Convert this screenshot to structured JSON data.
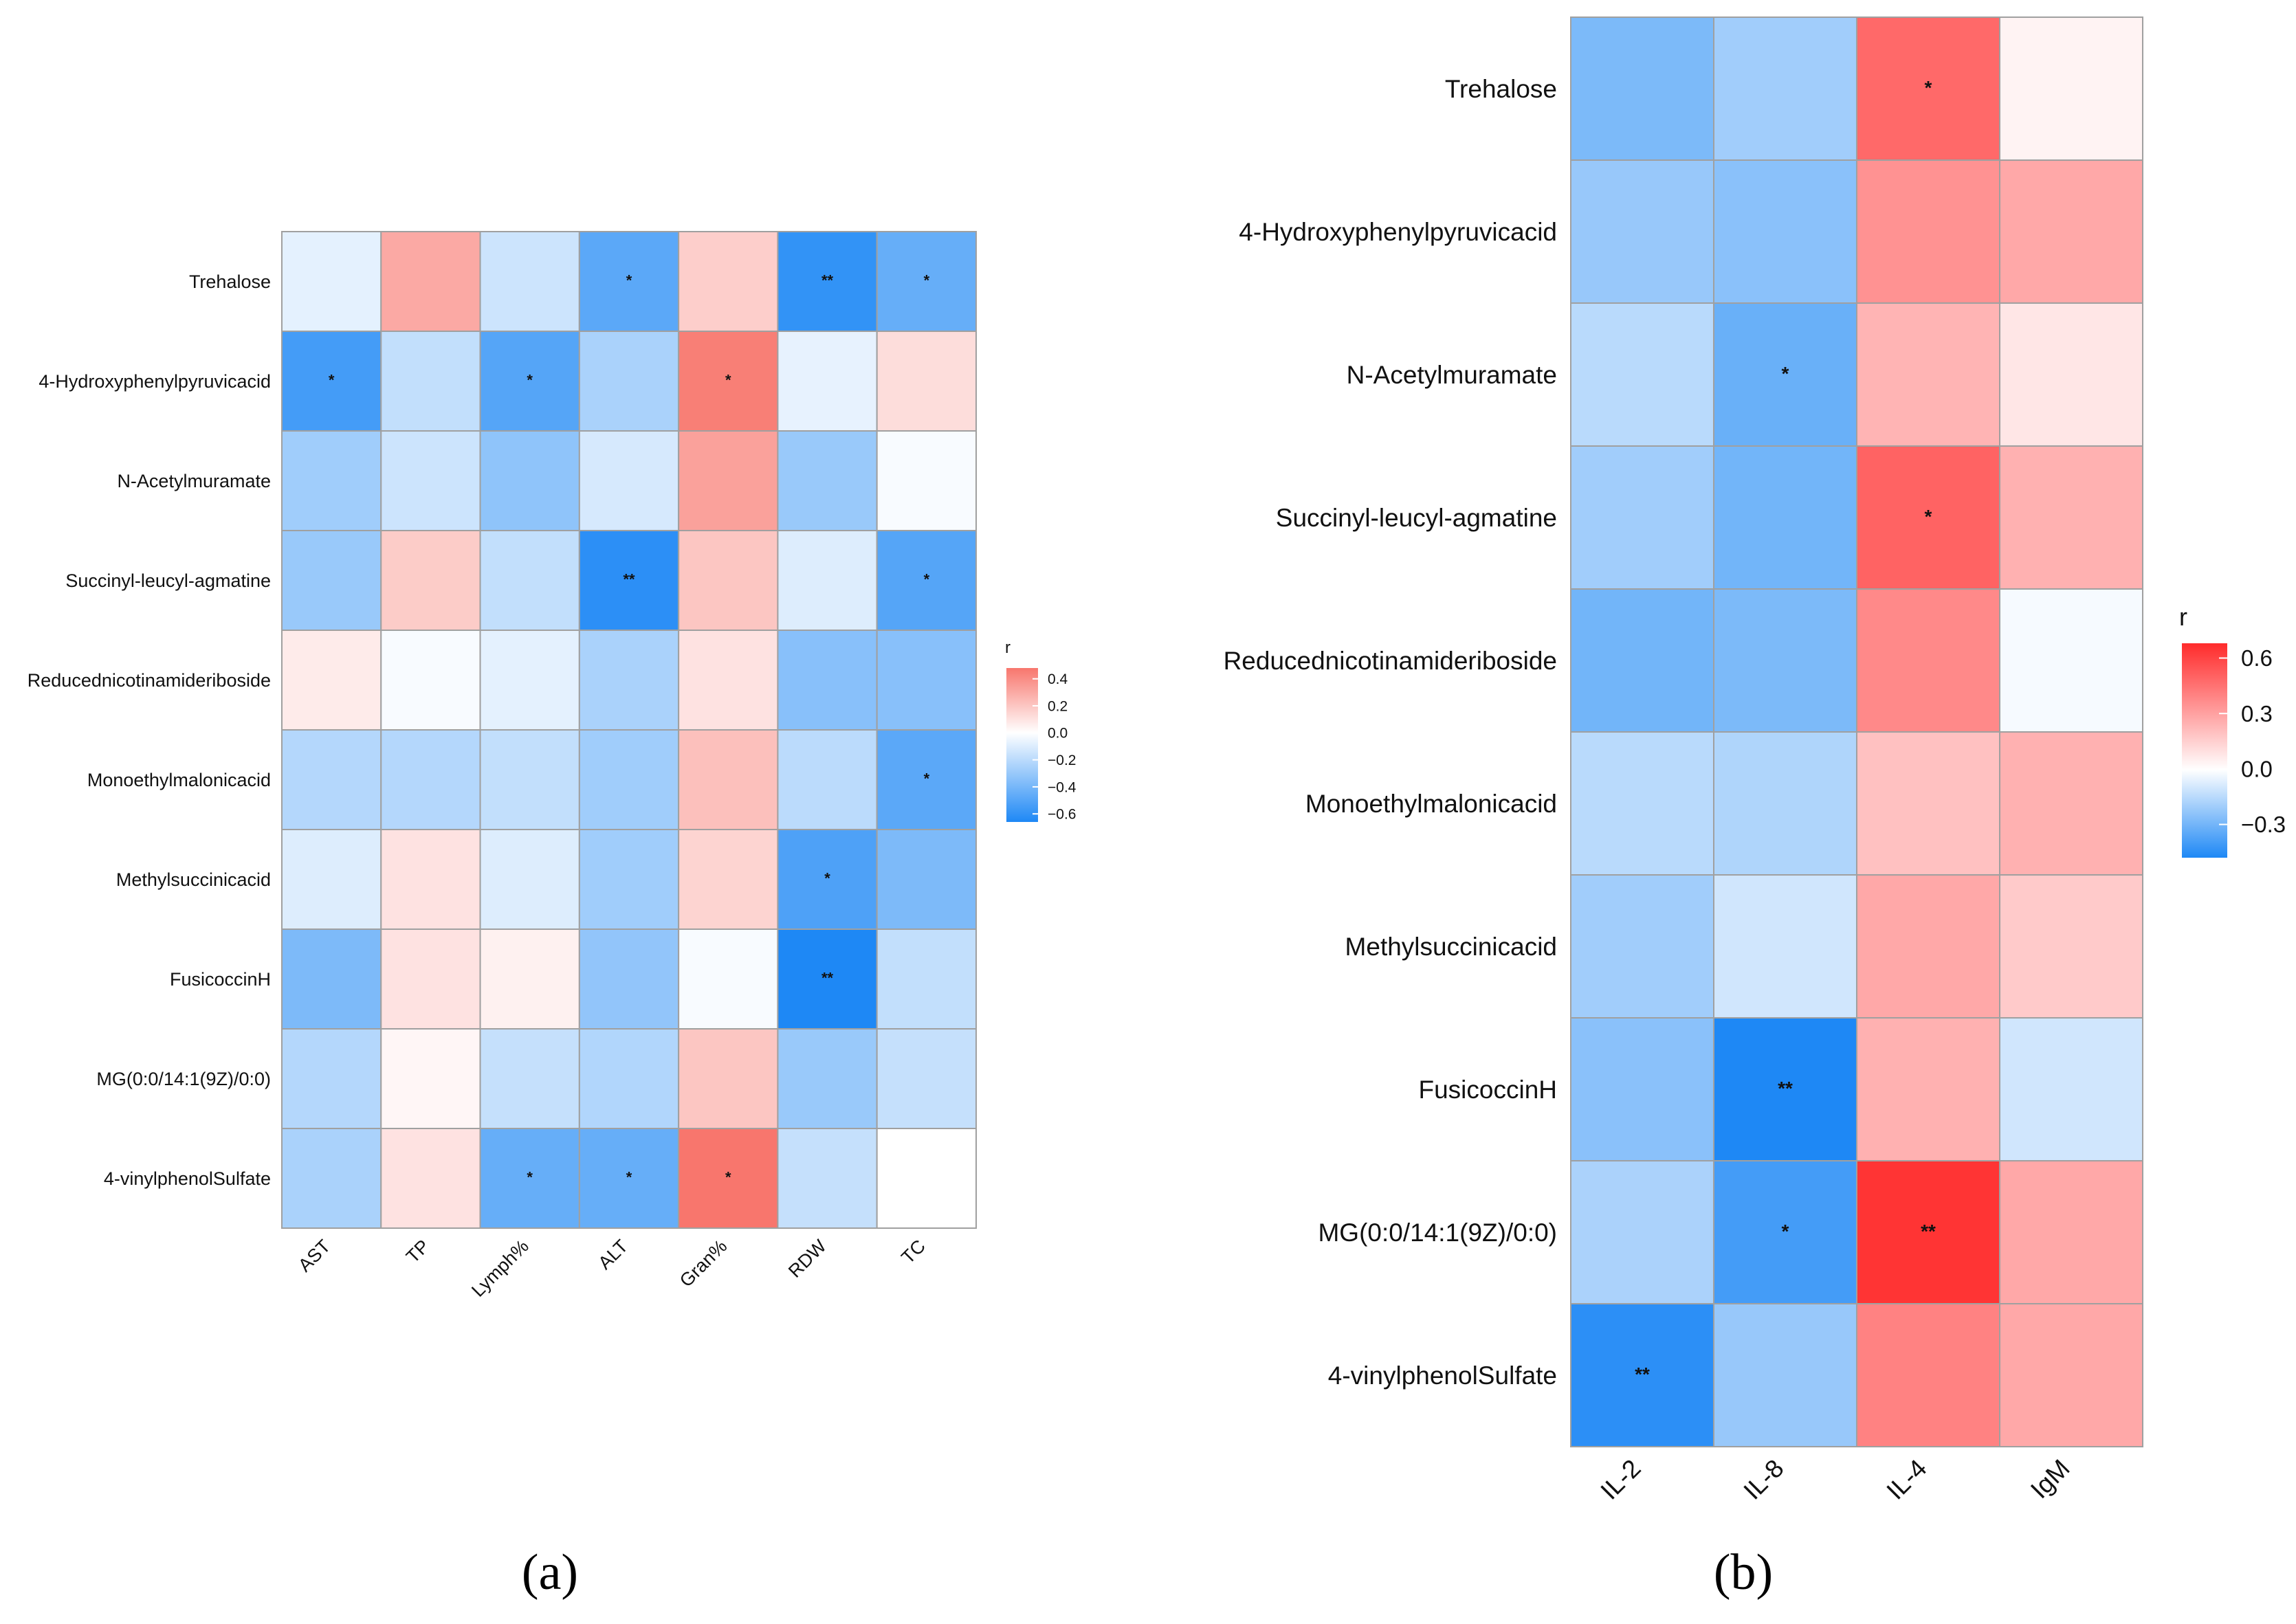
{
  "chart_data": [
    {
      "type": "heatmap",
      "panel_label": "(a)",
      "rows": [
        "Trehalose",
        "4-Hydroxyphenylpyruvicacid",
        "N-Acetylmuramate",
        "Succinyl-leucyl-agmatine",
        "Reducednicotinamideriboside",
        "Monoethylmalonicacid",
        "Methylsuccinicacid",
        "FusicoccinH",
        "MG(0:0/14:1(9Z)/0:0)",
        "4-vinylphenolSulfate"
      ],
      "columns": [
        "AST",
        "TP",
        "Lymph%",
        "ALT",
        "Gran%",
        "RDW",
        "TC"
      ],
      "values": [
        [
          -0.08,
          0.3,
          -0.15,
          -0.48,
          0.17,
          -0.6,
          -0.45
        ],
        [
          -0.55,
          -0.18,
          -0.5,
          -0.25,
          0.45,
          -0.07,
          0.12
        ],
        [
          -0.28,
          -0.15,
          -0.33,
          -0.12,
          0.33,
          -0.3,
          -0.02
        ],
        [
          -0.3,
          0.18,
          -0.18,
          -0.62,
          0.2,
          -0.1,
          -0.5
        ],
        [
          0.07,
          -0.02,
          -0.08,
          -0.25,
          0.1,
          -0.35,
          -0.35
        ],
        [
          -0.22,
          -0.22,
          -0.18,
          -0.28,
          0.22,
          -0.2,
          -0.48
        ],
        [
          -0.1,
          0.1,
          -0.1,
          -0.28,
          0.15,
          -0.52,
          -0.38
        ],
        [
          -0.38,
          0.1,
          0.05,
          -0.32,
          -0.02,
          -0.66,
          -0.18
        ],
        [
          -0.22,
          0.03,
          -0.17,
          -0.23,
          0.2,
          -0.3,
          -0.17
        ],
        [
          -0.25,
          0.1,
          -0.45,
          -0.45,
          0.48,
          -0.17,
          0.0
        ]
      ],
      "significance": [
        [
          "",
          "",
          "",
          "*",
          "",
          "**",
          "*"
        ],
        [
          "*",
          "",
          "*",
          "",
          "*",
          "",
          ""
        ],
        [
          "",
          "",
          "",
          "",
          "",
          "",
          ""
        ],
        [
          "",
          "",
          "",
          "**",
          "",
          "",
          "*"
        ],
        [
          "",
          "",
          "",
          "",
          "",
          "",
          ""
        ],
        [
          "",
          "",
          "",
          "",
          "",
          "",
          "*"
        ],
        [
          "",
          "",
          "",
          "",
          "",
          "*",
          ""
        ],
        [
          "",
          "",
          "",
          "",
          "",
          "**",
          ""
        ],
        [
          "",
          "",
          "",
          "",
          "",
          "",
          ""
        ],
        [
          "",
          "",
          "*",
          "*",
          "*",
          "",
          ""
        ]
      ],
      "legend": {
        "title": "r",
        "ticks": [
          "0.4",
          "0.2",
          "0.0",
          "−0.2",
          "−0.4",
          "−0.6"
        ],
        "range": [
          -0.66,
          0.48
        ],
        "position": "right"
      }
    },
    {
      "type": "heatmap",
      "panel_label": "(b)",
      "rows": [
        "Trehalose",
        "4-Hydroxyphenylpyruvicacid",
        "N-Acetylmuramate",
        "Succinyl-leucyl-agmatine",
        "Reducednicotinamideriboside",
        "Monoethylmalonicacid",
        "Methylsuccinicacid",
        "FusicoccinH",
        "MG(0:0/14:1(9Z)/0:0)",
        "4-vinylphenolSulfate"
      ],
      "columns": [
        "IL-2",
        "IL-8",
        "IL-4",
        "IgM"
      ],
      "values": [
        [
          -0.28,
          -0.2,
          0.48,
          0.04
        ],
        [
          -0.22,
          -0.25,
          0.35,
          0.28
        ],
        [
          -0.15,
          -0.32,
          0.24,
          0.08
        ],
        [
          -0.2,
          -0.3,
          0.5,
          0.25
        ],
        [
          -0.3,
          -0.28,
          0.38,
          -0.02
        ],
        [
          -0.15,
          -0.17,
          0.2,
          0.25
        ],
        [
          -0.2,
          -0.1,
          0.28,
          0.17
        ],
        [
          -0.25,
          -0.48,
          0.25,
          -0.1
        ],
        [
          -0.18,
          -0.4,
          0.65,
          0.28
        ],
        [
          -0.45,
          -0.22,
          0.4,
          0.28
        ]
      ],
      "significance": [
        [
          "",
          "",
          "*",
          ""
        ],
        [
          "",
          "",
          "",
          ""
        ],
        [
          "",
          "*",
          "",
          ""
        ],
        [
          "",
          "",
          "*",
          ""
        ],
        [
          "",
          "",
          "",
          ""
        ],
        [
          "",
          "",
          "",
          ""
        ],
        [
          "",
          "",
          "",
          ""
        ],
        [
          "",
          "**",
          "",
          ""
        ],
        [
          "",
          "*",
          "**",
          ""
        ],
        [
          "**",
          "",
          "",
          ""
        ]
      ],
      "legend": {
        "title": "r",
        "ticks": [
          "0.6",
          "0.3",
          "0.0",
          "−0.3"
        ],
        "range": [
          -0.48,
          0.68
        ],
        "position": "right"
      }
    }
  ]
}
